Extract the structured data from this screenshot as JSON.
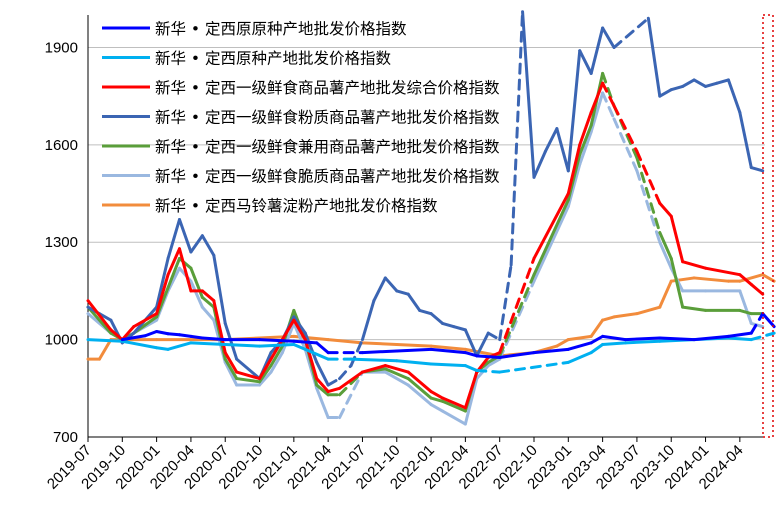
{
  "chart_data": {
    "type": "line",
    "title": "",
    "xlabel": "",
    "ylabel": "",
    "ylim": [
      700,
      2000
    ],
    "yticks": [
      700,
      1000,
      1300,
      1600,
      1900
    ],
    "grid": "horizontal",
    "legend_position": "top-left",
    "xlim": [
      "2019-07",
      "2024-06"
    ],
    "x_tick_labels": [
      "2019-07",
      "2019-10",
      "2020-01",
      "2020-04",
      "2020-07",
      "2020-10",
      "2021-01",
      "2021-04",
      "2021-07",
      "2021-10",
      "2022-01",
      "2022-04",
      "2022-07",
      "2022-10",
      "2023-01",
      "2023-04",
      "2023-07",
      "2023-10",
      "2024-01",
      "2024-04"
    ],
    "x_tick_index": [
      0,
      3,
      6,
      9,
      12,
      15,
      18,
      21,
      24,
      27,
      30,
      33,
      36,
      39,
      42,
      45,
      48,
      51,
      54,
      57
    ],
    "series": [
      {
        "name": "新华 • 定西原原种产地批发价格指数",
        "color": "#0000ff",
        "points": [
          [
            3,
            1000
          ],
          [
            5,
            1012
          ],
          [
            6,
            1025
          ],
          [
            7,
            1018
          ],
          [
            8,
            1015
          ],
          [
            9,
            1010
          ],
          [
            10,
            1005
          ],
          [
            12,
            1000
          ],
          [
            15,
            1000
          ],
          [
            18,
            995
          ],
          [
            20,
            990
          ],
          [
            21,
            960
          ],
          [
            24,
            960
          ],
          [
            27,
            965
          ],
          [
            30,
            970
          ],
          [
            33,
            960
          ],
          [
            34,
            950
          ],
          [
            36,
            945
          ],
          [
            39,
            960
          ],
          [
            42,
            970
          ],
          [
            44,
            990
          ],
          [
            45,
            1010
          ],
          [
            47,
            1000
          ],
          [
            50,
            1005
          ],
          [
            53,
            1000
          ],
          [
            56,
            1010
          ],
          [
            58,
            1020
          ],
          [
            59,
            1080
          ],
          [
            60,
            1040
          ]
        ],
        "dashed_gaps": [
          [
            21,
            24
          ],
          [
            57,
            59
          ]
        ]
      },
      {
        "name": "新华 • 定西原种产地批发价格指数",
        "color": "#00b0f0",
        "points": [
          [
            0,
            1000
          ],
          [
            3,
            995
          ],
          [
            6,
            975
          ],
          [
            7,
            970
          ],
          [
            9,
            990
          ],
          [
            12,
            985
          ],
          [
            15,
            980
          ],
          [
            18,
            985
          ],
          [
            21,
            940
          ],
          [
            23,
            940
          ],
          [
            27,
            935
          ],
          [
            30,
            925
          ],
          [
            33,
            920
          ],
          [
            34,
            905
          ],
          [
            36,
            900
          ],
          [
            42,
            930
          ],
          [
            44,
            960
          ],
          [
            45,
            985
          ],
          [
            47,
            990
          ],
          [
            50,
            995
          ],
          [
            53,
            1000
          ],
          [
            56,
            1005
          ],
          [
            58,
            1000
          ],
          [
            60,
            1020
          ]
        ],
        "dashed_gaps": [
          [
            21,
            23
          ],
          [
            34,
            42
          ],
          [
            58,
            60
          ]
        ]
      },
      {
        "name": "新华 • 定西一级鲜食商品薯产地批发综合价格指数",
        "color": "#ff0000",
        "points": [
          [
            0,
            1120
          ],
          [
            2,
            1030
          ],
          [
            3,
            1000
          ],
          [
            4,
            1040
          ],
          [
            6,
            1080
          ],
          [
            7,
            1200
          ],
          [
            8,
            1280
          ],
          [
            9,
            1150
          ],
          [
            10,
            1150
          ],
          [
            11,
            1120
          ],
          [
            12,
            960
          ],
          [
            13,
            900
          ],
          [
            15,
            880
          ],
          [
            16,
            940
          ],
          [
            17,
            1000
          ],
          [
            18,
            1060
          ],
          [
            19,
            1000
          ],
          [
            20,
            880
          ],
          [
            21,
            840
          ],
          [
            22,
            850
          ],
          [
            24,
            900
          ],
          [
            26,
            920
          ],
          [
            28,
            900
          ],
          [
            30,
            840
          ],
          [
            31,
            820
          ],
          [
            33,
            790
          ],
          [
            34,
            900
          ],
          [
            35,
            945
          ],
          [
            36,
            960
          ],
          [
            39,
            1250
          ],
          [
            42,
            1450
          ],
          [
            43,
            1600
          ],
          [
            44,
            1700
          ],
          [
            45,
            1790
          ],
          [
            46,
            1720
          ],
          [
            48,
            1580
          ],
          [
            50,
            1420
          ],
          [
            51,
            1380
          ],
          [
            52,
            1240
          ],
          [
            54,
            1220
          ],
          [
            57,
            1200
          ],
          [
            58,
            1170
          ],
          [
            59,
            1140
          ]
        ],
        "dashed_gaps": [
          [
            36,
            39
          ],
          [
            45,
            50
          ]
        ]
      },
      {
        "name": "新华 • 定西一级鲜食粉质商品薯产地批发价格指数",
        "color": "#3b65b3",
        "points": [
          [
            0,
            1100
          ],
          [
            1,
            1080
          ],
          [
            2,
            1060
          ],
          [
            3,
            990
          ],
          [
            4,
            1020
          ],
          [
            6,
            1100
          ],
          [
            7,
            1250
          ],
          [
            8,
            1370
          ],
          [
            9,
            1270
          ],
          [
            10,
            1320
          ],
          [
            11,
            1260
          ],
          [
            12,
            1050
          ],
          [
            13,
            940
          ],
          [
            15,
            880
          ],
          [
            16,
            960
          ],
          [
            17,
            1000
          ],
          [
            18,
            1070
          ],
          [
            19,
            1020
          ],
          [
            20,
            930
          ],
          [
            21,
            860
          ],
          [
            22,
            880
          ],
          [
            23,
            920
          ],
          [
            24,
            1000
          ],
          [
            25,
            1120
          ],
          [
            26,
            1190
          ],
          [
            27,
            1150
          ],
          [
            28,
            1140
          ],
          [
            29,
            1090
          ],
          [
            30,
            1080
          ],
          [
            31,
            1050
          ],
          [
            32,
            1040
          ],
          [
            33,
            1030
          ],
          [
            34,
            950
          ],
          [
            35,
            1020
          ],
          [
            36,
            1000
          ],
          [
            37,
            1230
          ],
          [
            38,
            2010
          ],
          [
            39,
            1500
          ],
          [
            40,
            1580
          ],
          [
            41,
            1650
          ],
          [
            42,
            1520
          ],
          [
            43,
            1890
          ],
          [
            44,
            1820
          ],
          [
            45,
            1960
          ],
          [
            46,
            1900
          ],
          [
            49,
            1990
          ],
          [
            50,
            1750
          ],
          [
            51,
            1770
          ],
          [
            52,
            1780
          ],
          [
            53,
            1800
          ],
          [
            54,
            1780
          ],
          [
            55,
            1790
          ],
          [
            56,
            1800
          ],
          [
            57,
            1700
          ],
          [
            58,
            1530
          ],
          [
            59,
            1520
          ]
        ],
        "dashed_gaps": [
          [
            21,
            24
          ],
          [
            35,
            38
          ],
          [
            46,
            49
          ]
        ]
      },
      {
        "name": "新华 • 定西一级鲜食兼用商品薯产地批发价格指数",
        "color": "#5a9e3a",
        "points": [
          [
            0,
            1100
          ],
          [
            2,
            1020
          ],
          [
            3,
            1000
          ],
          [
            4,
            1020
          ],
          [
            6,
            1070
          ],
          [
            7,
            1160
          ],
          [
            8,
            1250
          ],
          [
            9,
            1220
          ],
          [
            10,
            1130
          ],
          [
            11,
            1100
          ],
          [
            12,
            940
          ],
          [
            13,
            880
          ],
          [
            15,
            870
          ],
          [
            16,
            920
          ],
          [
            17,
            980
          ],
          [
            18,
            1090
          ],
          [
            19,
            1000
          ],
          [
            20,
            860
          ],
          [
            21,
            830
          ],
          [
            22,
            830
          ],
          [
            24,
            900
          ],
          [
            26,
            910
          ],
          [
            28,
            880
          ],
          [
            30,
            820
          ],
          [
            31,
            810
          ],
          [
            33,
            780
          ],
          [
            34,
            900
          ],
          [
            35,
            930
          ],
          [
            36,
            950
          ],
          [
            39,
            1200
          ],
          [
            42,
            1430
          ],
          [
            43,
            1570
          ],
          [
            44,
            1660
          ],
          [
            45,
            1820
          ],
          [
            46,
            1720
          ],
          [
            48,
            1560
          ],
          [
            50,
            1330
          ],
          [
            51,
            1250
          ],
          [
            52,
            1100
          ],
          [
            54,
            1090
          ],
          [
            57,
            1090
          ],
          [
            58,
            1080
          ],
          [
            59,
            1080
          ]
        ],
        "dashed_gaps": [
          [
            21,
            24
          ],
          [
            36,
            39
          ],
          [
            45,
            50
          ]
        ]
      },
      {
        "name": "新华 • 定西一级鲜食脆质商品薯产地批发价格指数",
        "color": "#9ab8e0",
        "points": [
          [
            0,
            1080
          ],
          [
            2,
            1020
          ],
          [
            3,
            1000
          ],
          [
            4,
            1020
          ],
          [
            6,
            1060
          ],
          [
            7,
            1150
          ],
          [
            8,
            1220
          ],
          [
            9,
            1180
          ],
          [
            10,
            1100
          ],
          [
            11,
            1060
          ],
          [
            12,
            930
          ],
          [
            13,
            860
          ],
          [
            15,
            860
          ],
          [
            16,
            900
          ],
          [
            17,
            960
          ],
          [
            18,
            1050
          ],
          [
            19,
            970
          ],
          [
            20,
            850
          ],
          [
            21,
            760
          ],
          [
            22,
            760
          ],
          [
            24,
            900
          ],
          [
            26,
            900
          ],
          [
            28,
            860
          ],
          [
            30,
            800
          ],
          [
            31,
            780
          ],
          [
            33,
            740
          ],
          [
            34,
            880
          ],
          [
            35,
            920
          ],
          [
            36,
            940
          ],
          [
            39,
            1180
          ],
          [
            42,
            1410
          ],
          [
            43,
            1540
          ],
          [
            44,
            1640
          ],
          [
            45,
            1760
          ],
          [
            46,
            1680
          ],
          [
            48,
            1520
          ],
          [
            50,
            1300
          ],
          [
            51,
            1220
          ],
          [
            52,
            1150
          ],
          [
            54,
            1150
          ],
          [
            57,
            1150
          ],
          [
            58,
            1050
          ],
          [
            59,
            1040
          ]
        ],
        "dashed_gaps": [
          [
            21,
            24
          ],
          [
            36,
            39
          ],
          [
            45,
            50
          ]
        ]
      },
      {
        "name": "新华 • 定西马铃薯淀粉产地批发价格指数",
        "color": "#f28c3c",
        "points": [
          [
            0,
            940
          ],
          [
            1,
            940
          ],
          [
            2,
            1000
          ],
          [
            6,
            1000
          ],
          [
            12,
            1000
          ],
          [
            15,
            1005
          ],
          [
            18,
            1010
          ],
          [
            21,
            1000
          ],
          [
            24,
            990
          ],
          [
            27,
            985
          ],
          [
            30,
            980
          ],
          [
            33,
            970
          ],
          [
            36,
            950
          ],
          [
            39,
            960
          ],
          [
            41,
            980
          ],
          [
            42,
            1000
          ],
          [
            44,
            1010
          ],
          [
            45,
            1060
          ],
          [
            46,
            1070
          ],
          [
            48,
            1080
          ],
          [
            50,
            1100
          ],
          [
            51,
            1180
          ],
          [
            53,
            1190
          ],
          [
            56,
            1180
          ],
          [
            57,
            1180
          ],
          [
            59,
            1200
          ],
          [
            60,
            1180
          ]
        ],
        "dashed_gaps": []
      }
    ]
  }
}
